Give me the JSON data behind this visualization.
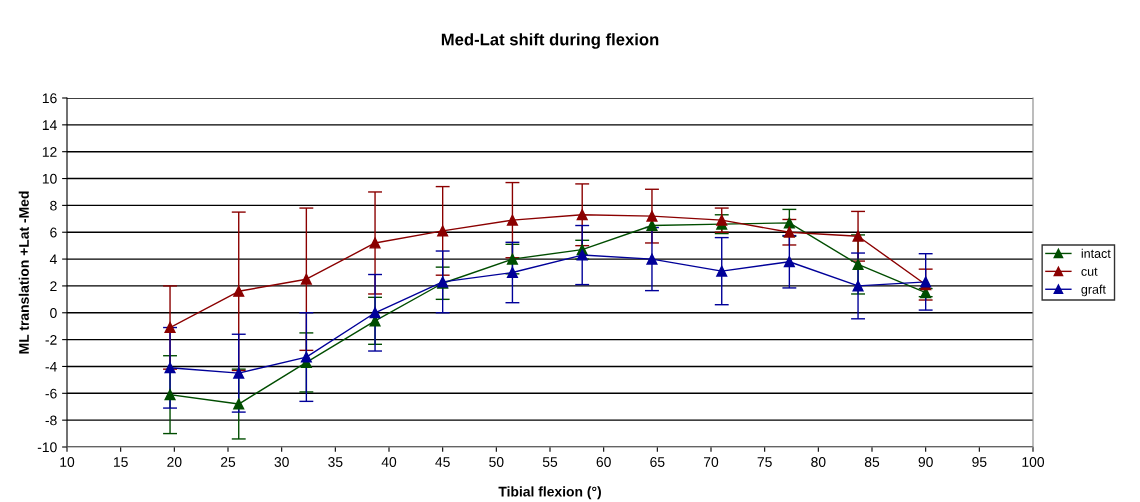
{
  "chart_data": {
    "type": "line",
    "title": "Med-Lat shift during flexion",
    "xlabel": "Tibial flexion (°)",
    "ylabel": "ML translation +Lat -Med",
    "x": [
      19.6,
      26,
      32.3,
      38.7,
      45,
      51.5,
      58,
      64.5,
      71,
      77.3,
      83.7,
      90
    ],
    "series": [
      {
        "name": "intact",
        "color": "#004d00",
        "values": [
          -6.1,
          -6.8,
          -3.7,
          -0.6,
          2.2,
          4.0,
          4.7,
          6.5,
          6.6,
          6.7,
          3.6,
          1.5
        ],
        "errors": [
          2.9,
          2.6,
          2.2,
          1.75,
          1.2,
          1.1,
          0.7,
          null,
          0.7,
          1.0,
          2.2,
          0.3
        ]
      },
      {
        "name": "cut",
        "color": "#8b0000",
        "values": [
          -1.1,
          1.6,
          2.5,
          5.2,
          6.1,
          6.9,
          7.3,
          7.2,
          6.9,
          6.0,
          5.7,
          2.1
        ],
        "errors": [
          3.1,
          5.9,
          5.3,
          3.8,
          3.3,
          2.8,
          2.3,
          2.0,
          0.9,
          0.95,
          1.85,
          1.15
        ]
      },
      {
        "name": "graft",
        "color": "#000099",
        "values": [
          -4.1,
          -4.5,
          -3.3,
          0.0,
          2.3,
          3.0,
          4.3,
          4.0,
          3.1,
          3.8,
          2.0,
          2.3
        ],
        "errors": [
          3.0,
          2.9,
          3.3,
          2.85,
          2.3,
          2.25,
          2.2,
          2.35,
          2.5,
          1.95,
          2.45,
          2.1
        ]
      }
    ],
    "xlim": [
      10,
      100
    ],
    "xticks": [
      10,
      15,
      20,
      25,
      30,
      35,
      40,
      45,
      50,
      55,
      60,
      65,
      70,
      75,
      80,
      85,
      90,
      95,
      100
    ],
    "ylim": [
      -10,
      16
    ],
    "yticks": [
      -10,
      -8,
      -6,
      -4,
      -2,
      0,
      2,
      4,
      6,
      8,
      10,
      12,
      14,
      16
    ],
    "grid": "y",
    "legend": "right",
    "marker": "triangle",
    "line_style": "solid"
  }
}
